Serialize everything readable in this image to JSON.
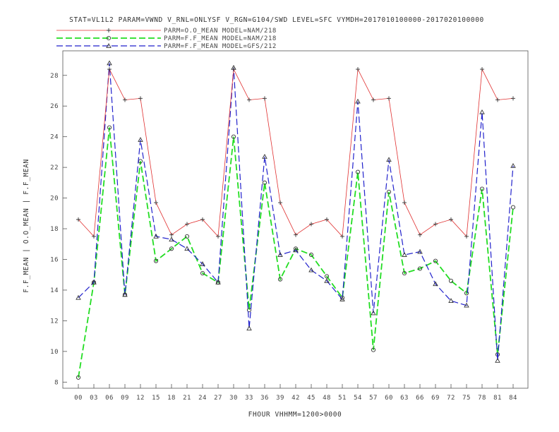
{
  "chart_data": {
    "type": "line",
    "title": "STAT=VL1L2 PARAM=VWND V_RNL=ONLYSF V_RGN=G104/SWD LEVEL=SFC VYMDH=2017010100000-2017020100000",
    "xlabel": "FHOUR VHHMM=1200>0000",
    "ylabel": "F.F_MEAN | O.O_MEAN | F.F_MEAN",
    "categories": [
      "00",
      "03",
      "06",
      "09",
      "12",
      "15",
      "18",
      "21",
      "24",
      "27",
      "30",
      "33",
      "36",
      "39",
      "42",
      "45",
      "48",
      "51",
      "54",
      "57",
      "60",
      "63",
      "66",
      "69",
      "72",
      "75",
      "78",
      "81",
      "84"
    ],
    "yticks": [
      8,
      10,
      12,
      14,
      16,
      18,
      20,
      22,
      24,
      26,
      28
    ],
    "ylim": [
      7.6,
      29.6
    ],
    "grid": false,
    "legend_placement": "top-center",
    "series": [
      {
        "name": "PARM=O.O_MEAN MODEL=NAM/218",
        "color": "#e03030",
        "marker": "plus",
        "dash": "solid",
        "values": [
          18.6,
          17.5,
          28.4,
          26.4,
          26.5,
          19.7,
          17.6,
          18.3,
          18.6,
          17.5,
          28.4,
          26.4,
          26.5,
          19.7,
          17.6,
          18.3,
          18.6,
          17.5,
          28.4,
          26.4,
          26.5,
          19.7,
          17.6,
          18.3,
          18.6,
          17.5,
          28.4,
          26.4,
          26.5
        ]
      },
      {
        "name": "PARM=F.F_MEAN MODEL=NAM/218",
        "color": "#22dd22",
        "marker": "circle",
        "dash": "long",
        "values": [
          8.3,
          14.5,
          24.6,
          13.7,
          22.4,
          15.9,
          16.7,
          17.5,
          15.1,
          14.5,
          24.0,
          12.7,
          21.0,
          14.7,
          16.7,
          16.3,
          14.9,
          13.5,
          21.7,
          10.1,
          20.4,
          15.1,
          15.4,
          15.9,
          14.6,
          13.8,
          20.6,
          9.8,
          19.4
        ]
      },
      {
        "name": "PARM=F.F_MEAN MODEL=GFS/212",
        "color": "#2222cc",
        "marker": "triangle",
        "dash": "long",
        "values": [
          13.5,
          14.5,
          28.8,
          13.7,
          23.8,
          17.5,
          17.3,
          16.7,
          15.7,
          14.5,
          28.5,
          11.5,
          22.7,
          16.3,
          16.6,
          15.3,
          14.6,
          13.4,
          26.3,
          12.5,
          22.5,
          16.3,
          16.5,
          14.4,
          13.3,
          13.0,
          25.6,
          9.4,
          22.1
        ]
      }
    ]
  }
}
